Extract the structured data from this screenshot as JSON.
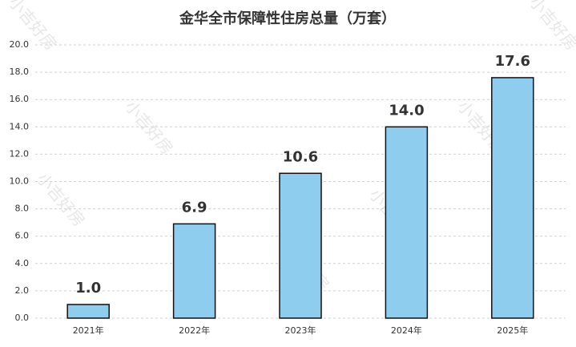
{
  "chart_data": {
    "type": "bar",
    "title": "金华全市保障性住房总量（万套）",
    "categories": [
      "2021年",
      "2022年",
      "2023年",
      "2024年",
      "2025年"
    ],
    "values": [
      1.0,
      6.9,
      10.6,
      14.0,
      17.6
    ],
    "value_labels": [
      "1.0",
      "6.9",
      "10.6",
      "14.0",
      "17.6"
    ],
    "color": "#8fcdee",
    "ylim": [
      0,
      20
    ],
    "yticks": [
      {
        "value": 0,
        "label": "0.0"
      },
      {
        "value": 2,
        "label": "2.0"
      },
      {
        "value": 4,
        "label": "4.0"
      },
      {
        "value": 6,
        "label": "6.0"
      },
      {
        "value": 8,
        "label": "8.0"
      },
      {
        "value": 10,
        "label": "10.0"
      },
      {
        "value": 12,
        "label": "12.0"
      },
      {
        "value": 14,
        "label": "14.0"
      },
      {
        "value": 16,
        "label": "16.0"
      },
      {
        "value": 18,
        "label": "18.0"
      },
      {
        "value": 20,
        "label": "20.0"
      }
    ],
    "grid": true,
    "watermark": "小吉好房"
  }
}
